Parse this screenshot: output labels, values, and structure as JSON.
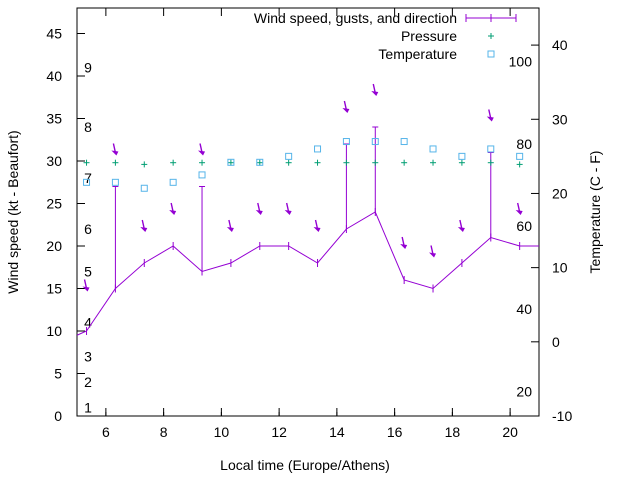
{
  "chart_data": {
    "type": "line",
    "xlabel": "Local time (Europe/Athens)",
    "ylabel": "Wind speed (kt - Beaufort)",
    "y2label": "Temperature (C - F)",
    "xlim": [
      5,
      21
    ],
    "ylim": [
      0,
      48
    ],
    "y2lim": [
      -10,
      45
    ],
    "x_ticks": [
      6,
      8,
      10,
      12,
      14,
      16,
      18,
      20
    ],
    "y_ticks": [
      0,
      5,
      10,
      15,
      20,
      25,
      30,
      35,
      40,
      45
    ],
    "y2_ticks": [
      -10,
      0,
      10,
      20,
      30,
      40
    ],
    "beaufort_labels": [
      {
        "label": "1",
        "kt": 1
      },
      {
        "label": "2",
        "kt": 4
      },
      {
        "label": "3",
        "kt": 7
      },
      {
        "label": "4",
        "kt": 11
      },
      {
        "label": "5",
        "kt": 17
      },
      {
        "label": "6",
        "kt": 22
      },
      {
        "label": "7",
        "kt": 28
      },
      {
        "label": "8",
        "kt": 34
      },
      {
        "label": "9",
        "kt": 41
      }
    ],
    "fahrenheit_labels": [
      {
        "label": "20",
        "c": -6.7
      },
      {
        "label": "40",
        "c": 4.4
      },
      {
        "label": "60",
        "c": 15.6
      },
      {
        "label": "80",
        "c": 26.7
      },
      {
        "label": "100",
        "c": 37.8
      }
    ],
    "legend": [
      "Wind speed, gusts, and direction",
      "Pressure",
      "Temperature"
    ],
    "legend_position": "top-right",
    "grid": false,
    "colors": {
      "wind": "#9400d3",
      "pressure": "#009e73",
      "temperature": "#56b4e9"
    },
    "wind": {
      "x": [
        5.0,
        5.33,
        6.33,
        7.33,
        8.33,
        9.33,
        10.33,
        11.33,
        12.33,
        13.33,
        14.33,
        15.33,
        16.33,
        17.33,
        18.33,
        19.33,
        20.33,
        21.0
      ],
      "speed": [
        9.5,
        10,
        15,
        18,
        20,
        17,
        18,
        20,
        20,
        18,
        22,
        24,
        16,
        15,
        18,
        21,
        20,
        20
      ],
      "gust": [
        null,
        null,
        27,
        null,
        null,
        27,
        null,
        null,
        null,
        null,
        32,
        34,
        null,
        null,
        null,
        31,
        null,
        null
      ]
    },
    "direction_arrows": {
      "x": [
        5.33,
        6.33,
        7.33,
        8.33,
        9.33,
        10.33,
        11.33,
        12.33,
        13.33,
        14.33,
        15.33,
        16.33,
        17.33,
        18.33,
        19.33,
        20.33
      ],
      "y": [
        15,
        31,
        22,
        24,
        31,
        22,
        24,
        24,
        22,
        36,
        38,
        20,
        19,
        22,
        35,
        24
      ]
    },
    "pressure": {
      "x": [
        5.33,
        6.33,
        7.33,
        8.33,
        9.33,
        10.33,
        11.33,
        12.33,
        13.33,
        14.33,
        15.33,
        16.33,
        17.33,
        18.33,
        19.33,
        20.33
      ],
      "y": [
        29.8,
        29.8,
        29.6,
        29.8,
        29.8,
        29.8,
        29.8,
        29.8,
        29.8,
        29.8,
        29.8,
        29.8,
        29.8,
        29.8,
        29.8,
        29.6
      ]
    },
    "temperature": {
      "x": [
        5.33,
        6.33,
        7.33,
        8.33,
        9.33,
        10.33,
        11.33,
        12.33,
        13.33,
        14.33,
        15.33,
        16.33,
        17.33,
        18.33,
        19.33,
        20.33
      ],
      "y": [
        21.5,
        21.5,
        20.7,
        21.5,
        22.5,
        24.2,
        24.2,
        25.0,
        26.0,
        27.0,
        27.0,
        27.0,
        26.0,
        25.0,
        26.0,
        25.0
      ]
    }
  }
}
